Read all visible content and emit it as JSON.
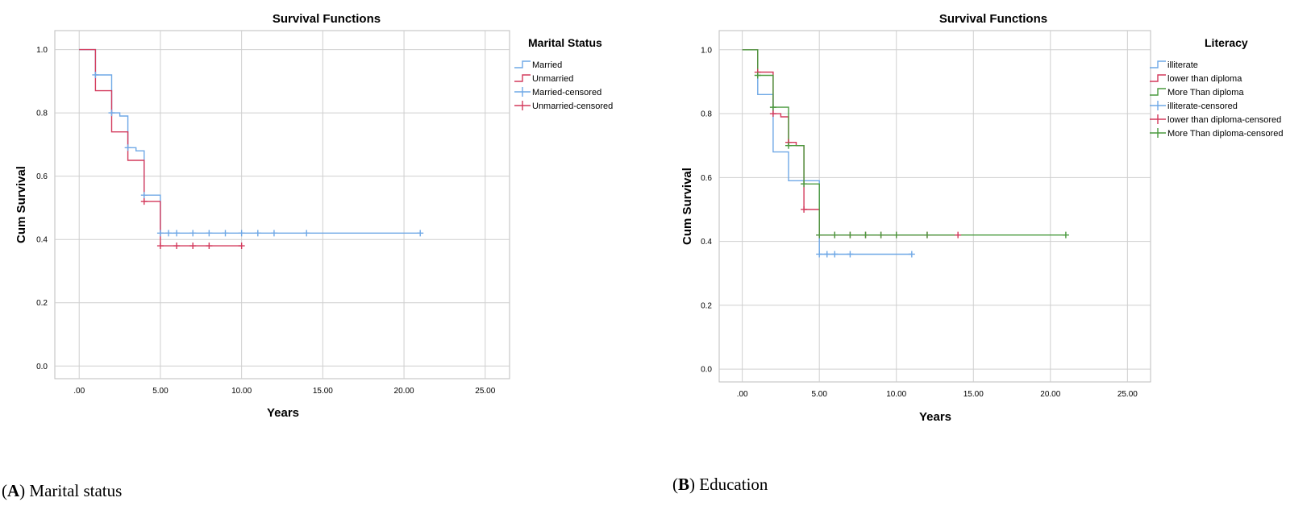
{
  "chart_data": [
    {
      "type": "line",
      "subtype": "kaplan-meier step",
      "title": "Survival Functions",
      "xlabel": "Years",
      "ylabel": "Cum Survival",
      "xlim": [
        -1.5,
        26.5
      ],
      "ylim": [
        -0.04,
        1.06
      ],
      "xticks": [
        ".00",
        "5.00",
        "10.00",
        "15.00",
        "20.00",
        "25.00"
      ],
      "xtick_values": [
        0,
        5,
        10,
        15,
        20,
        25
      ],
      "yticks": [
        "0.0",
        "0.2",
        "0.4",
        "0.6",
        "0.8",
        "1.0"
      ],
      "ytick_values": [
        0,
        0.2,
        0.4,
        0.6,
        0.8,
        1.0
      ],
      "grid": true,
      "legend_title": "Marital Status",
      "legend_position": "right",
      "legend": [
        "Married",
        "Unmarried",
        "Married-censored",
        "Unmarried-censored"
      ],
      "series": [
        {
          "name": "Married",
          "color": "#6fa8e6",
          "steps": [
            [
              0,
              1.0
            ],
            [
              1,
              0.92
            ],
            [
              2,
              0.8
            ],
            [
              2.5,
              0.79
            ],
            [
              3,
              0.69
            ],
            [
              3.5,
              0.68
            ],
            [
              4,
              0.54
            ],
            [
              5,
              0.42
            ],
            [
              21,
              0.42
            ]
          ],
          "censored": [
            [
              1,
              0.92
            ],
            [
              2,
              0.8
            ],
            [
              3,
              0.69
            ],
            [
              4,
              0.54
            ],
            [
              5,
              0.42
            ],
            [
              5.5,
              0.42
            ],
            [
              6,
              0.42
            ],
            [
              7,
              0.42
            ],
            [
              8,
              0.42
            ],
            [
              9,
              0.42
            ],
            [
              10,
              0.42
            ],
            [
              11,
              0.42
            ],
            [
              12,
              0.42
            ],
            [
              14,
              0.42
            ],
            [
              21,
              0.42
            ]
          ]
        },
        {
          "name": "Unmarried",
          "color": "#d33a5c",
          "steps": [
            [
              0,
              1.0
            ],
            [
              1,
              0.87
            ],
            [
              2,
              0.74
            ],
            [
              3,
              0.65
            ],
            [
              4,
              0.52
            ],
            [
              5,
              0.38
            ],
            [
              10,
              0.38
            ]
          ],
          "censored": [
            [
              4,
              0.52
            ],
            [
              5,
              0.38
            ],
            [
              6,
              0.38
            ],
            [
              7,
              0.38
            ],
            [
              8,
              0.38
            ],
            [
              10,
              0.38
            ]
          ]
        }
      ],
      "caption_label": "A",
      "caption_text": " Marital status"
    },
    {
      "type": "line",
      "subtype": "kaplan-meier step",
      "title": "Survival Functions",
      "xlabel": "Years",
      "ylabel": "Cum Survival",
      "xlim": [
        -1.5,
        26.5
      ],
      "ylim": [
        -0.04,
        1.06
      ],
      "xticks": [
        ".00",
        "5.00",
        "10.00",
        "15.00",
        "20.00",
        "25.00"
      ],
      "xtick_values": [
        0,
        5,
        10,
        15,
        20,
        25
      ],
      "yticks": [
        "0.0",
        "0.2",
        "0.4",
        "0.6",
        "0.8",
        "1.0"
      ],
      "ytick_values": [
        0,
        0.2,
        0.4,
        0.6,
        0.8,
        1.0
      ],
      "grid": true,
      "legend_title": "Literacy",
      "legend_position": "right",
      "legend": [
        "illiterate",
        "lower than diploma",
        "More Than diploma",
        "illiterate-censored",
        "lower than diploma-censored",
        "More Than diploma-censored"
      ],
      "series": [
        {
          "name": "illiterate",
          "color": "#6fa8e6",
          "steps": [
            [
              0,
              1.0
            ],
            [
              1,
              0.86
            ],
            [
              2,
              0.68
            ],
            [
              3,
              0.59
            ],
            [
              4,
              0.59
            ],
            [
              5,
              0.36
            ],
            [
              11,
              0.36
            ]
          ],
          "censored": [
            [
              5,
              0.36
            ],
            [
              5.5,
              0.36
            ],
            [
              6,
              0.36
            ],
            [
              7,
              0.36
            ],
            [
              11,
              0.36
            ]
          ]
        },
        {
          "name": "lower than diploma",
          "color": "#d33a5c",
          "steps": [
            [
              0,
              1.0
            ],
            [
              1,
              0.93
            ],
            [
              2,
              0.8
            ],
            [
              2.5,
              0.79
            ],
            [
              3,
              0.71
            ],
            [
              3.5,
              0.7
            ],
            [
              4,
              0.5
            ],
            [
              5,
              0.42
            ],
            [
              14,
              0.42
            ]
          ],
          "censored": [
            [
              1,
              0.93
            ],
            [
              2,
              0.8
            ],
            [
              3,
              0.71
            ],
            [
              4,
              0.5
            ],
            [
              5,
              0.42
            ],
            [
              6,
              0.42
            ],
            [
              7,
              0.42
            ],
            [
              8,
              0.42
            ],
            [
              9,
              0.42
            ],
            [
              10,
              0.42
            ],
            [
              12,
              0.42
            ],
            [
              14,
              0.42
            ]
          ]
        },
        {
          "name": "More Than diploma",
          "color": "#4a9a3e",
          "steps": [
            [
              0,
              1.0
            ],
            [
              1,
              0.92
            ],
            [
              2,
              0.82
            ],
            [
              3,
              0.7
            ],
            [
              4,
              0.58
            ],
            [
              5,
              0.42
            ],
            [
              21,
              0.42
            ]
          ],
          "censored": [
            [
              1,
              0.92
            ],
            [
              2,
              0.82
            ],
            [
              3,
              0.7
            ],
            [
              4,
              0.58
            ],
            [
              5,
              0.42
            ],
            [
              6,
              0.42
            ],
            [
              7,
              0.42
            ],
            [
              8,
              0.42
            ],
            [
              9,
              0.42
            ],
            [
              10,
              0.42
            ],
            [
              12,
              0.42
            ],
            [
              21,
              0.42
            ]
          ]
        }
      ],
      "caption_label": "B",
      "caption_text": " Education"
    }
  ]
}
